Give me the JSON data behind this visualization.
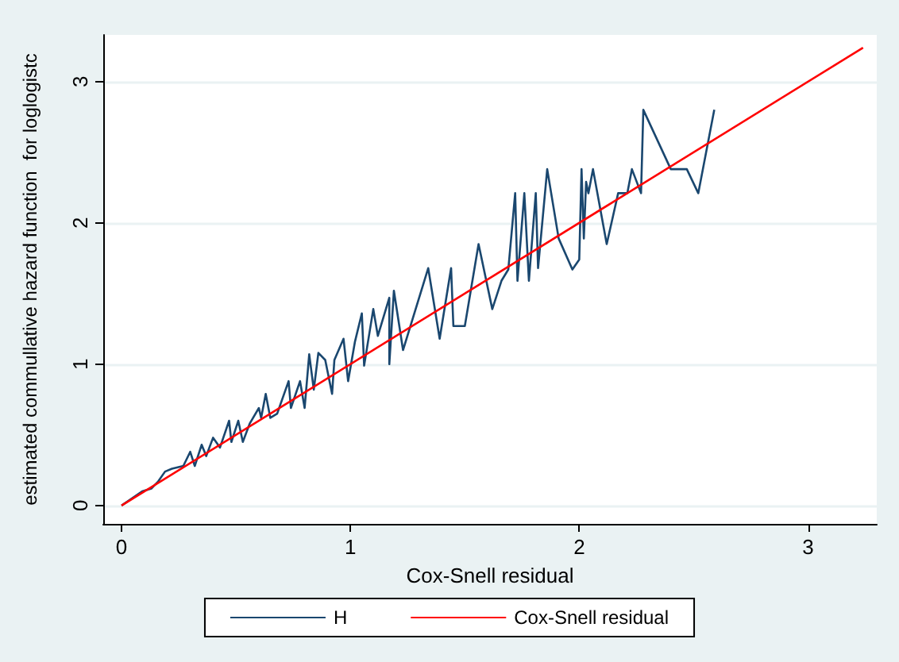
{
  "chart_data": {
    "type": "line",
    "xlabel": "Cox-Snell residual",
    "ylabel": "estimated commullative hazard function  for loglogistc",
    "xlim": [
      -0.08,
      3.3
    ],
    "ylim": [
      -0.13,
      3.33
    ],
    "xticks": [
      0,
      1,
      2,
      3
    ],
    "yticks": [
      0,
      1,
      2,
      3
    ],
    "grid": "y",
    "legend": "bottom",
    "marker": "none",
    "series": [
      {
        "name": "H",
        "color": "#1a476f",
        "x": [
          0,
          0.09,
          0.13,
          0.16,
          0.19,
          0.22,
          0.27,
          0.3,
          0.32,
          0.35,
          0.37,
          0.4,
          0.43,
          0.47,
          0.48,
          0.51,
          0.53,
          0.56,
          0.6,
          0.61,
          0.63,
          0.65,
          0.68,
          0.73,
          0.74,
          0.78,
          0.8,
          0.82,
          0.84,
          0.86,
          0.89,
          0.92,
          0.93,
          0.97,
          0.99,
          1.02,
          1.05,
          1.06,
          1.1,
          1.12,
          1.17,
          1.17,
          1.19,
          1.23,
          1.34,
          1.39,
          1.44,
          1.45,
          1.5,
          1.56,
          1.62,
          1.66,
          1.69,
          1.72,
          1.73,
          1.76,
          1.78,
          1.81,
          1.82,
          1.86,
          1.91,
          1.97,
          2.0,
          2.01,
          2.02,
          2.03,
          2.04,
          2.06,
          2.12,
          2.17,
          2.21,
          2.23,
          2.27,
          2.28,
          2.4,
          2.47,
          2.52,
          2.59
        ],
        "values": [
          0,
          0.1,
          0.12,
          0.17,
          0.24,
          0.26,
          0.28,
          0.38,
          0.28,
          0.43,
          0.35,
          0.48,
          0.41,
          0.6,
          0.45,
          0.6,
          0.45,
          0.58,
          0.69,
          0.62,
          0.79,
          0.62,
          0.65,
          0.88,
          0.69,
          0.88,
          0.69,
          1.07,
          0.82,
          1.08,
          1.03,
          0.79,
          1.03,
          1.18,
          0.88,
          1.16,
          1.36,
          0.99,
          1.39,
          1.2,
          1.47,
          1.0,
          1.52,
          1.1,
          1.68,
          1.18,
          1.68,
          1.27,
          1.27,
          1.85,
          1.39,
          1.59,
          1.67,
          2.21,
          1.59,
          2.21,
          1.59,
          2.21,
          1.68,
          2.38,
          1.89,
          1.67,
          1.74,
          2.38,
          1.89,
          2.29,
          2.21,
          2.38,
          1.85,
          2.21,
          2.21,
          2.38,
          2.21,
          2.8,
          2.38,
          2.38,
          2.21,
          2.8
        ]
      },
      {
        "name": "Cox-Snell residual",
        "color": "#ff0000",
        "x": [
          0,
          3.24
        ],
        "values": [
          0,
          3.24
        ]
      }
    ]
  }
}
